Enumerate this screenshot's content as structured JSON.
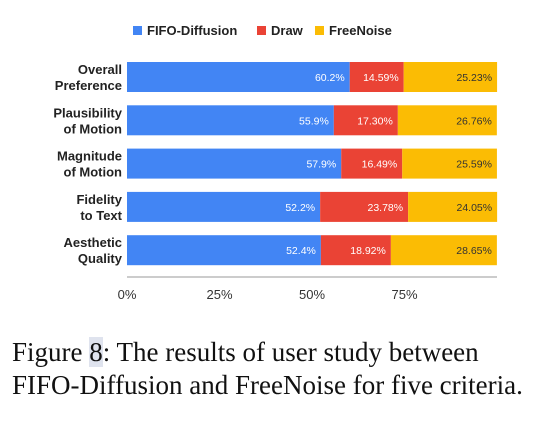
{
  "chart_data": {
    "type": "bar",
    "orientation": "horizontal",
    "stacked": true,
    "categories": [
      [
        "Overall",
        "Preference"
      ],
      [
        "Plausibility",
        "of Motion"
      ],
      [
        "Magnitude",
        "of Motion"
      ],
      [
        "Fidelity",
        "to Text"
      ],
      [
        "Aesthetic",
        "Quality"
      ]
    ],
    "series": [
      {
        "name": "FIFO-Diffusion",
        "color": "#4285F4",
        "values": [
          60.2,
          55.9,
          57.9,
          52.2,
          52.4
        ],
        "labels": [
          "60.2%",
          "55.9%",
          "57.9%",
          "52.2%",
          "52.4%"
        ]
      },
      {
        "name": "Draw",
        "color": "#EA4335",
        "values": [
          14.59,
          17.3,
          16.49,
          23.78,
          18.92
        ],
        "labels": [
          "14.59%",
          "17.30%",
          "16.49%",
          "23.78%",
          "18.92%"
        ]
      },
      {
        "name": "FreeNoise",
        "color": "#FBBC04",
        "values": [
          25.23,
          26.76,
          25.59,
          24.05,
          28.65
        ],
        "labels": [
          "25.23%",
          "26.76%",
          "25.59%",
          "24.05%",
          "28.65%"
        ]
      }
    ],
    "xlim": [
      0,
      100
    ],
    "xticks": [
      0,
      25,
      50,
      75
    ],
    "xtick_labels": [
      "0%",
      "25%",
      "50%",
      "75%"
    ],
    "legend_position": "top",
    "grid": false
  },
  "caption": {
    "label": "Figure",
    "number": "8",
    "text": ": The results of user study between FIFO-Diffusion and FreeNoise for five criteria."
  }
}
